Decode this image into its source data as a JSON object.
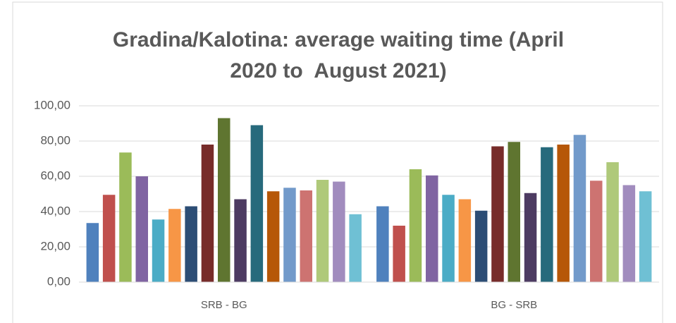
{
  "chart_data": {
    "type": "bar",
    "title": [
      "Gradina/Kalotina: average waiting time (April",
      "2020 to  August 2021)"
    ],
    "categories": [
      "SRB - BG",
      "BG - SRB"
    ],
    "series": [
      {
        "color": "#4f81bd",
        "values": [
          33.5,
          43
        ]
      },
      {
        "color": "#c0504d",
        "values": [
          49.5,
          32
        ]
      },
      {
        "color": "#9bbb59",
        "values": [
          73.5,
          64
        ]
      },
      {
        "color": "#8064a2",
        "values": [
          60,
          60.5
        ]
      },
      {
        "color": "#4bacc6",
        "values": [
          35.5,
          49.5
        ]
      },
      {
        "color": "#f79646",
        "values": [
          41.5,
          47
        ]
      },
      {
        "color": "#2c4d75",
        "values": [
          43,
          40.5
        ]
      },
      {
        "color": "#772c2a",
        "values": [
          78,
          77
        ]
      },
      {
        "color": "#5f7530",
        "values": [
          93,
          79.5
        ]
      },
      {
        "color": "#4d3b62",
        "values": [
          47,
          50.5
        ]
      },
      {
        "color": "#276a7c",
        "values": [
          89,
          76.5
        ]
      },
      {
        "color": "#b65708",
        "values": [
          51.5,
          78
        ]
      },
      {
        "color": "#729aca",
        "values": [
          53.5,
          83.5
        ]
      },
      {
        "color": "#cd7371",
        "values": [
          52,
          57.5
        ]
      },
      {
        "color": "#afc97a",
        "values": [
          58,
          68
        ]
      },
      {
        "color": "#a18cbe",
        "values": [
          57,
          55
        ]
      },
      {
        "color": "#6fc0d4",
        "values": [
          38.5,
          51.5
        ]
      }
    ],
    "ylim": [
      0,
      100
    ],
    "yticks": [
      {
        "value": 0,
        "label": "0,00"
      },
      {
        "value": 20,
        "label": "20,00"
      },
      {
        "value": 40,
        "label": "40,00"
      },
      {
        "value": 60,
        "label": "60,00"
      },
      {
        "value": 80,
        "label": "80,00"
      },
      {
        "value": 100,
        "label": "100,00"
      }
    ],
    "grid": true
  }
}
